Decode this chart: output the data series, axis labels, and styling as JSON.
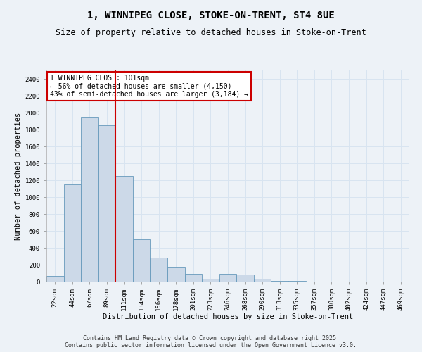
{
  "title": "1, WINNIPEG CLOSE, STOKE-ON-TRENT, ST4 8UE",
  "subtitle": "Size of property relative to detached houses in Stoke-on-Trent",
  "xlabel": "Distribution of detached houses by size in Stoke-on-Trent",
  "ylabel": "Number of detached properties",
  "categories": [
    "22sqm",
    "44sqm",
    "67sqm",
    "89sqm",
    "111sqm",
    "134sqm",
    "156sqm",
    "178sqm",
    "201sqm",
    "223sqm",
    "246sqm",
    "268sqm",
    "290sqm",
    "313sqm",
    "335sqm",
    "357sqm",
    "380sqm",
    "402sqm",
    "424sqm",
    "447sqm",
    "469sqm"
  ],
  "values": [
    70,
    1150,
    1950,
    1850,
    1250,
    500,
    280,
    175,
    95,
    30,
    90,
    80,
    30,
    10,
    5,
    3,
    2,
    1,
    1,
    0,
    0
  ],
  "bar_color": "#ccd9e8",
  "bar_edge_color": "#6699bb",
  "vline_x": 3.5,
  "vline_color": "#cc0000",
  "annotation_text": "1 WINNIPEG CLOSE: 101sqm\n← 56% of detached houses are smaller (4,150)\n43% of semi-detached houses are larger (3,184) →",
  "annotation_box_color": "#cc0000",
  "ylim": [
    0,
    2500
  ],
  "yticks": [
    0,
    200,
    400,
    600,
    800,
    1000,
    1200,
    1400,
    1600,
    1800,
    2000,
    2200,
    2400
  ],
  "bg_color": "#edf2f7",
  "grid_color": "#d8e4f0",
  "footer_line1": "Contains HM Land Registry data © Crown copyright and database right 2025.",
  "footer_line2": "Contains public sector information licensed under the Open Government Licence v3.0.",
  "title_fontsize": 10,
  "subtitle_fontsize": 8.5,
  "axis_label_fontsize": 7.5,
  "tick_fontsize": 6.5,
  "annotation_fontsize": 7,
  "footer_fontsize": 6
}
